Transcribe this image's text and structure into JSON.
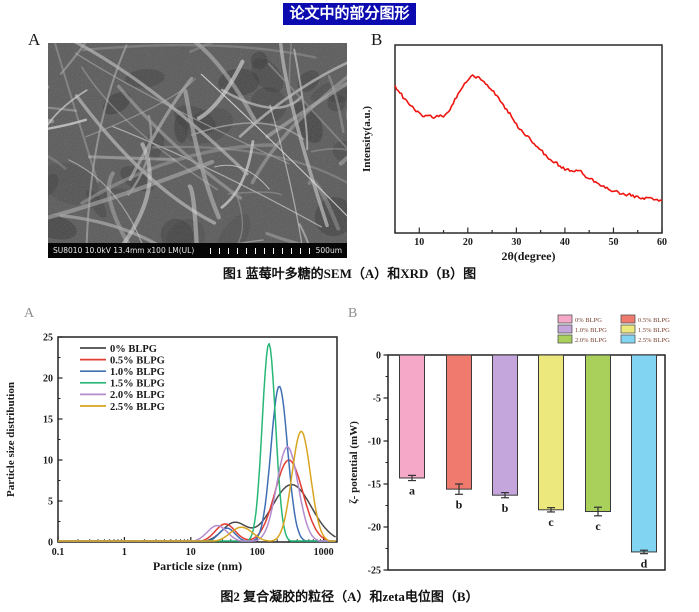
{
  "page_title": "论文中的部分图形",
  "fig1": {
    "panel_a_label": "A",
    "panel_b_label": "B",
    "caption": "图1 蓝莓叶多糖的SEM（A）和XRD（B）图",
    "sem": {
      "info_text": "SU8010 10.0kV 13.4mm x100 LM(UL)",
      "scale_text": "500um"
    }
  },
  "fig2": {
    "panel_a_label": "A",
    "panel_b_label": "B",
    "caption": "图2 复合凝胶的粒径（A）和zeta电位图（B）"
  },
  "chart_data": [
    {
      "id": "xrd",
      "type": "line",
      "xlabel": "2θ(degree)",
      "ylabel": "Intensity(a.u.)",
      "x_start": 5,
      "x_step": 1,
      "x_range": [
        5,
        60
      ],
      "xticks": [
        10,
        20,
        30,
        40,
        50,
        60
      ],
      "color": "#ee1510",
      "intensity_au": [
        0.8,
        0.76,
        0.72,
        0.69,
        0.66,
        0.64,
        0.62,
        0.63,
        0.615,
        0.625,
        0.62,
        0.645,
        0.7,
        0.755,
        0.8,
        0.835,
        0.86,
        0.855,
        0.835,
        0.805,
        0.775,
        0.74,
        0.7,
        0.66,
        0.62,
        0.575,
        0.54,
        0.51,
        0.48,
        0.45,
        0.42,
        0.395,
        0.37,
        0.35,
        0.33,
        0.31,
        0.3,
        0.295,
        0.305,
        0.275,
        0.255,
        0.24,
        0.225,
        0.21,
        0.195,
        0.185,
        0.175,
        0.165,
        0.16,
        0.155,
        0.15,
        0.145,
        0.14,
        0.135,
        0.13,
        0.125
      ],
      "peak_note": "broad amorphous halo centered near 2θ=21°"
    },
    {
      "id": "particle-size",
      "type": "line",
      "xlabel": "Particle size (nm)",
      "ylabel": "Particle size distribution",
      "x_scale": "log",
      "x_range_nm": [
        0.1,
        1600
      ],
      "xticks": [
        0.1,
        1,
        10,
        100,
        1000
      ],
      "yticks": [
        0,
        5,
        10,
        15,
        20,
        25
      ],
      "ylim": [
        0,
        25
      ],
      "legend_position": "upper-left",
      "series": [
        {
          "name": "0% BLPG",
          "color": "#4a4a4a",
          "peaks": [
            {
              "center_nm": 45,
              "height": 2.3,
              "sigma_log10": 0.18
            },
            {
              "center_nm": 330,
              "height": 7.0,
              "sigma_log10": 0.3
            }
          ]
        },
        {
          "name": "0.5% BLPG",
          "color": "#e23c32",
          "peaks": [
            {
              "center_nm": 33,
              "height": 2.2,
              "sigma_log10": 0.15
            },
            {
              "center_nm": 300,
              "height": 10.0,
              "sigma_log10": 0.21
            }
          ]
        },
        {
          "name": "1.0% BLPG",
          "color": "#3f6fb5",
          "peaks": [
            {
              "center_nm": 35,
              "height": 1.7,
              "sigma_log10": 0.12
            },
            {
              "center_nm": 215,
              "height": 19.0,
              "sigma_log10": 0.125
            }
          ]
        },
        {
          "name": "1.5% BLPG",
          "color": "#27b877",
          "peaks": [
            {
              "center_nm": 150,
              "height": 24.2,
              "sigma_log10": 0.1
            }
          ]
        },
        {
          "name": "2.0% BLPG",
          "color": "#b48cce",
          "peaks": [
            {
              "center_nm": 25,
              "height": 2.0,
              "sigma_log10": 0.15
            },
            {
              "center_nm": 285,
              "height": 11.6,
              "sigma_log10": 0.16
            }
          ]
        },
        {
          "name": "2.5% BLPG",
          "color": "#d9a520",
          "peaks": [
            {
              "center_nm": 58,
              "height": 1.8,
              "sigma_log10": 0.17
            },
            {
              "center_nm": 460,
              "height": 13.5,
              "sigma_log10": 0.14
            }
          ]
        }
      ]
    },
    {
      "id": "zeta",
      "type": "bar",
      "ylabel": "ζ- potential (mW)",
      "yticks": [
        0,
        -5,
        -10,
        -15,
        -20,
        -25
      ],
      "ylim": [
        -25,
        0
      ],
      "legend_position": "upper-right",
      "categories": [
        "0% BLPG",
        "0.5% BLPG",
        "1.0% BLPG",
        "1.5% BLPG",
        "2.0% BLPG",
        "2.5% BLPG"
      ],
      "values": [
        -14.3,
        -15.6,
        -16.3,
        -18.0,
        -18.2,
        -22.9
      ],
      "errors": [
        0.3,
        0.6,
        0.3,
        0.25,
        0.5,
        0.2
      ],
      "sig_letters": [
        "a",
        "b",
        "b",
        "c",
        "c",
        "d"
      ],
      "colors": [
        "#f5a8c8",
        "#ef7a6d",
        "#c5a6dc",
        "#ece87e",
        "#a8d05a",
        "#82d5f2"
      ],
      "legend_text_color": "#7a4030"
    }
  ]
}
